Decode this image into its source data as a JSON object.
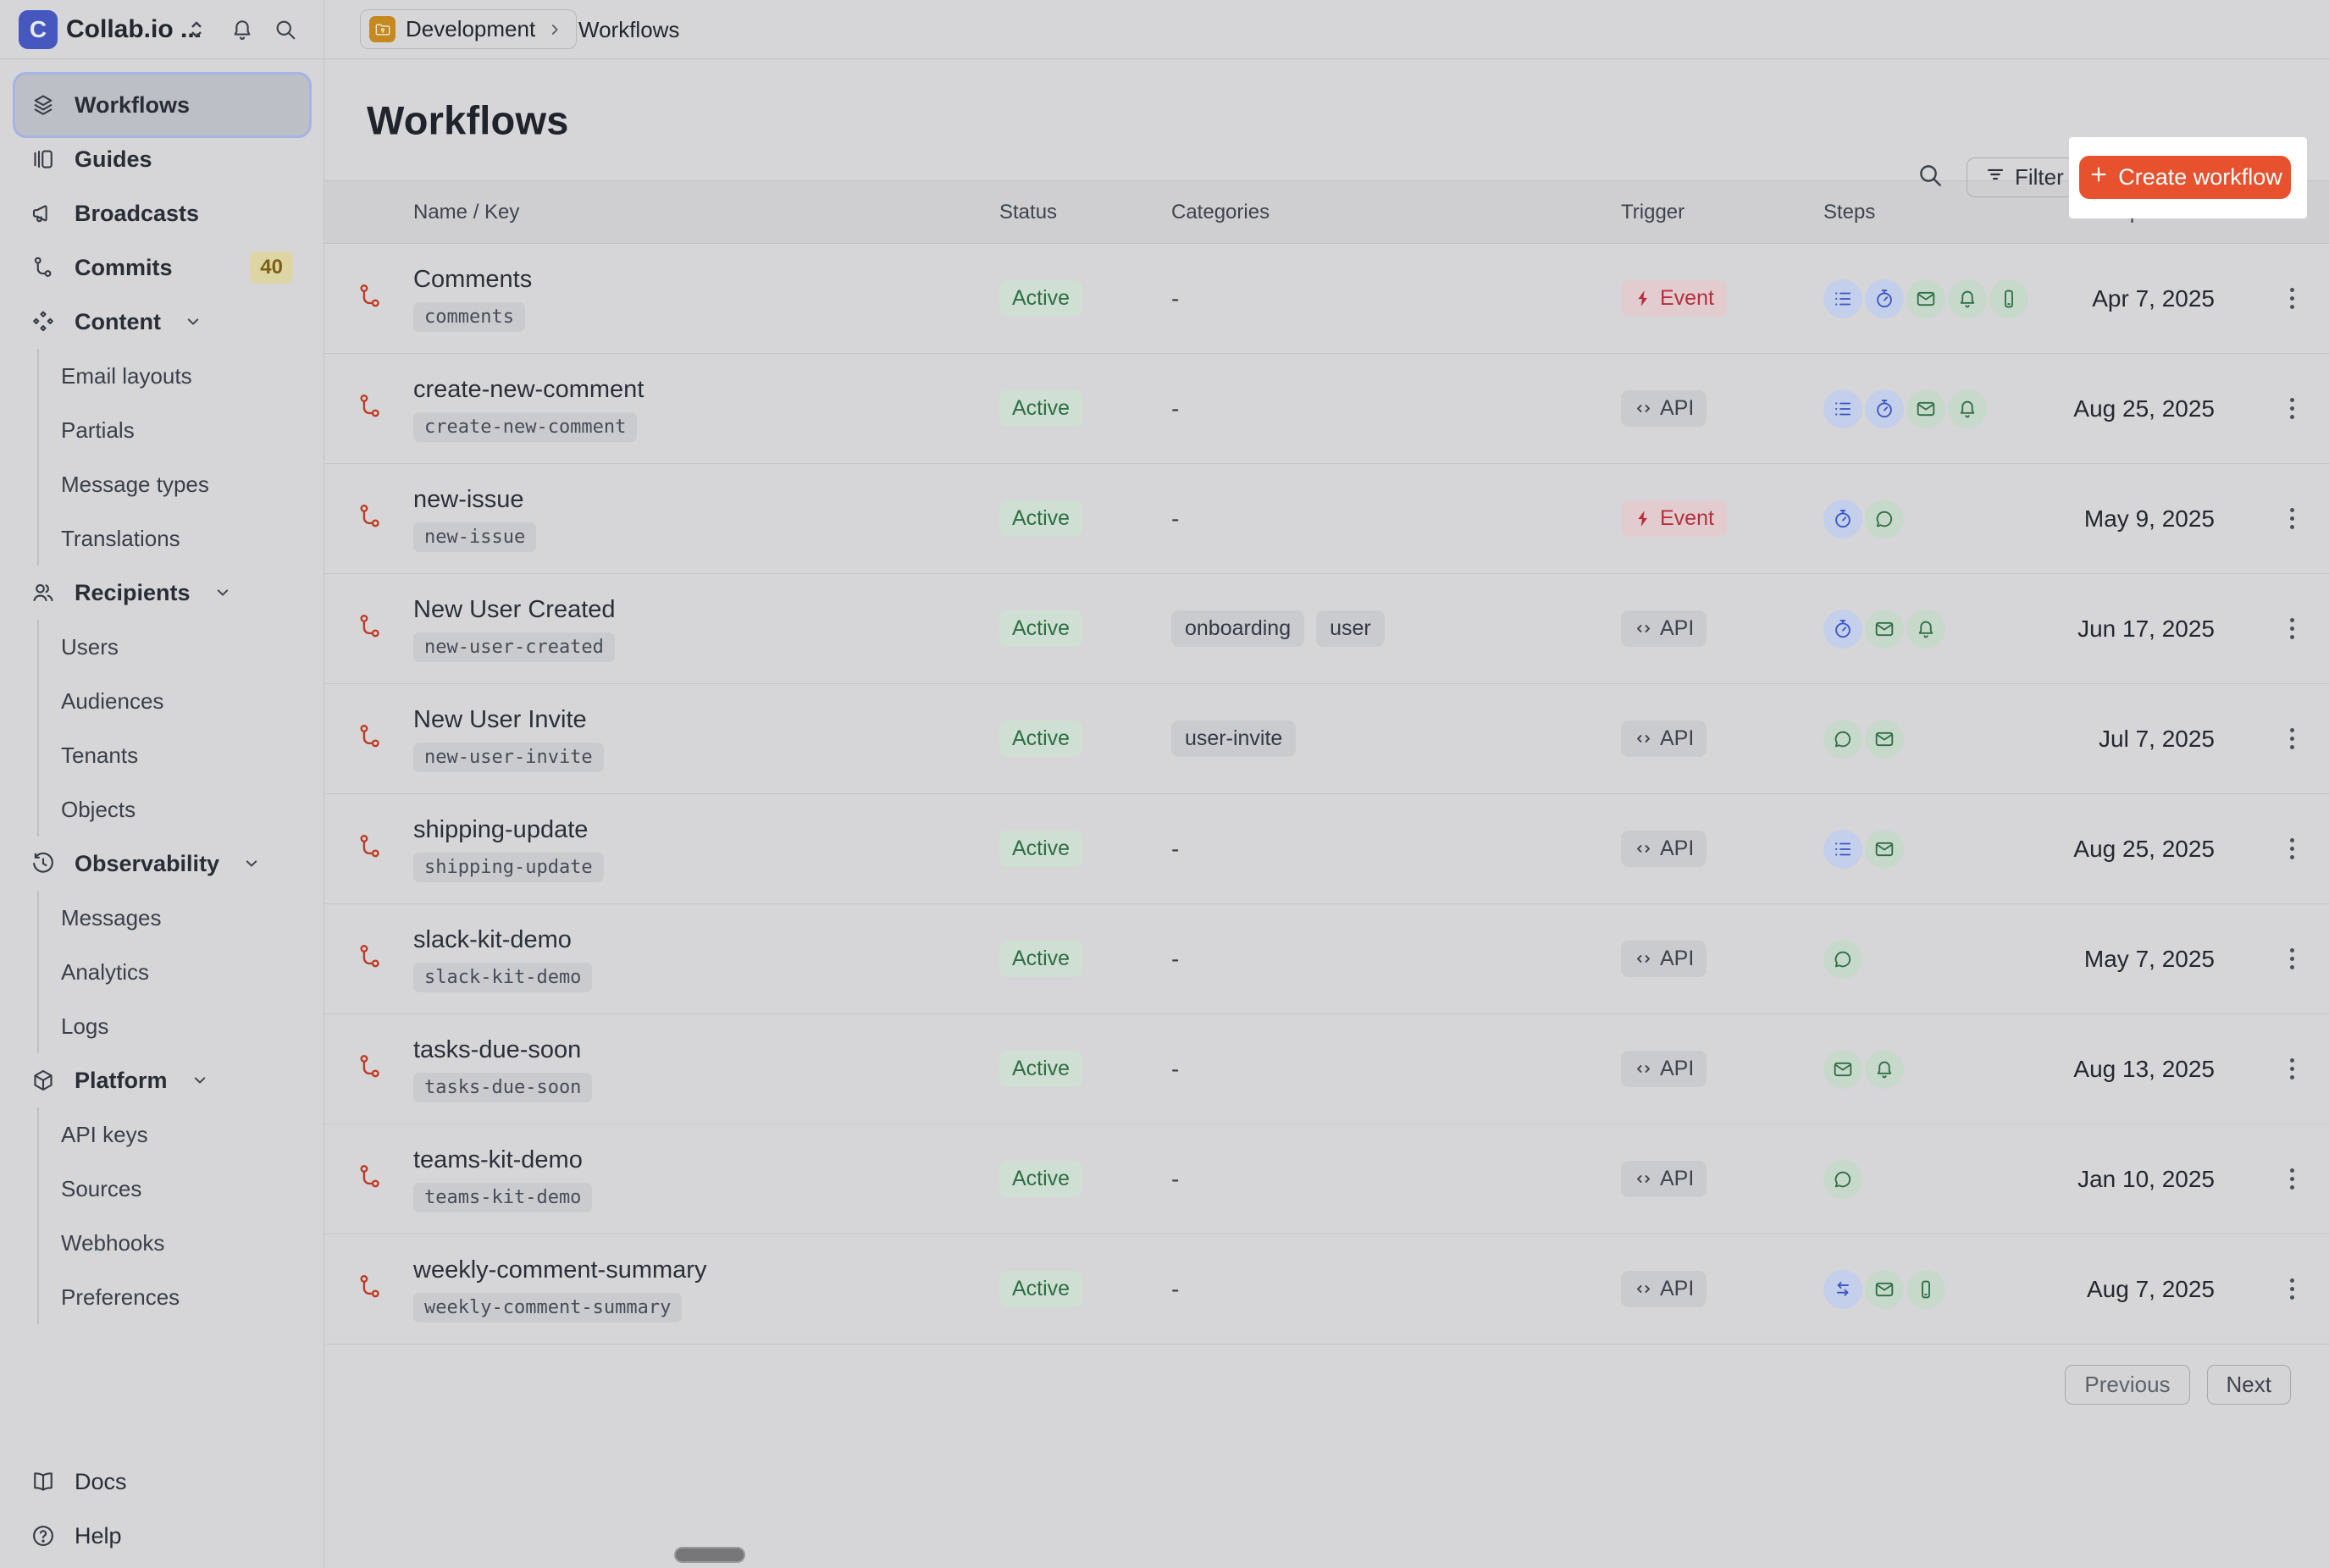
{
  "workspace": {
    "name": "Collab.io ...",
    "logo_letter": "C"
  },
  "sidebar": {
    "items": [
      {
        "label": "Workflows",
        "icon": "layers",
        "selected": true
      },
      {
        "label": "Guides",
        "icon": "guides"
      },
      {
        "label": "Broadcasts",
        "icon": "megaphone"
      },
      {
        "label": "Commits",
        "icon": "commit",
        "badge": "40"
      },
      {
        "label": "Content",
        "icon": "content",
        "expandable": true,
        "children": [
          "Email layouts",
          "Partials",
          "Message types",
          "Translations"
        ]
      },
      {
        "label": "Recipients",
        "icon": "people",
        "expandable": true,
        "children": [
          "Users",
          "Audiences",
          "Tenants",
          "Objects"
        ]
      },
      {
        "label": "Observability",
        "icon": "history",
        "expandable": true,
        "children": [
          "Messages",
          "Analytics",
          "Logs"
        ]
      },
      {
        "label": "Platform",
        "icon": "box",
        "expandable": true,
        "children": [
          "API keys",
          "Sources",
          "Webhooks",
          "Preferences"
        ]
      }
    ],
    "footer_items": [
      {
        "label": "Docs",
        "icon": "book"
      },
      {
        "label": "Help",
        "icon": "help"
      }
    ]
  },
  "topbar": {
    "breadcrumb_env": "Development",
    "breadcrumb_page": "Workflows"
  },
  "header": {
    "title": "Workflows",
    "filter_label": "Filter",
    "create_label": "Create workflow"
  },
  "table": {
    "columns": [
      "Name / Key",
      "Status",
      "Categories",
      "Trigger",
      "Steps",
      "Updated at"
    ],
    "empty_category": "-",
    "rows": [
      {
        "name": "Comments",
        "key": "comments",
        "status": "Active",
        "categories": [],
        "trigger": "Event",
        "steps": [
          "list",
          "timer",
          "mail",
          "bell",
          "phone"
        ],
        "updated": "Apr 7, 2025"
      },
      {
        "name": "create-new-comment",
        "key": "create-new-comment",
        "status": "Active",
        "categories": [],
        "trigger": "API",
        "steps": [
          "list",
          "timer",
          "mail",
          "bell"
        ],
        "updated": "Aug 25, 2025"
      },
      {
        "name": "new-issue",
        "key": "new-issue",
        "status": "Active",
        "categories": [],
        "trigger": "Event",
        "steps": [
          "timer",
          "chat"
        ],
        "updated": "May 9, 2025"
      },
      {
        "name": "New User Created",
        "key": "new-user-created",
        "status": "Active",
        "categories": [
          "onboarding",
          "user"
        ],
        "trigger": "API",
        "steps": [
          "timer",
          "mail",
          "bell"
        ],
        "updated": "Jun 17, 2025"
      },
      {
        "name": "New User Invite",
        "key": "new-user-invite",
        "status": "Active",
        "categories": [
          "user-invite"
        ],
        "trigger": "API",
        "steps": [
          "chat",
          "mail"
        ],
        "updated": "Jul 7, 2025"
      },
      {
        "name": "shipping-update",
        "key": "shipping-update",
        "status": "Active",
        "categories": [],
        "trigger": "API",
        "steps": [
          "list",
          "mail"
        ],
        "updated": "Aug 25, 2025"
      },
      {
        "name": "slack-kit-demo",
        "key": "slack-kit-demo",
        "status": "Active",
        "categories": [],
        "trigger": "API",
        "steps": [
          "chat"
        ],
        "updated": "May 7, 2025"
      },
      {
        "name": "tasks-due-soon",
        "key": "tasks-due-soon",
        "status": "Active",
        "categories": [],
        "trigger": "API",
        "steps": [
          "mail",
          "bell"
        ],
        "updated": "Aug 13, 2025"
      },
      {
        "name": "teams-kit-demo",
        "key": "teams-kit-demo",
        "status": "Active",
        "categories": [],
        "trigger": "API",
        "steps": [
          "chat"
        ],
        "updated": "Jan 10, 2025"
      },
      {
        "name": "weekly-comment-summary",
        "key": "weekly-comment-summary",
        "status": "Active",
        "categories": [],
        "trigger": "API",
        "steps": [
          "swap",
          "mail",
          "phone"
        ],
        "updated": "Aug 7, 2025"
      }
    ]
  },
  "pagination": {
    "previous_label": "Previous",
    "next_label": "Next"
  },
  "colors": {
    "accent_orange": "#e8512e",
    "active_green_tx": "#2d6f44",
    "active_green_bg": "#cfdfd3",
    "event_red_tx": "#b5303d",
    "event_red_bg": "#e2ccd0",
    "selected_blue": "#a6b3e3"
  }
}
